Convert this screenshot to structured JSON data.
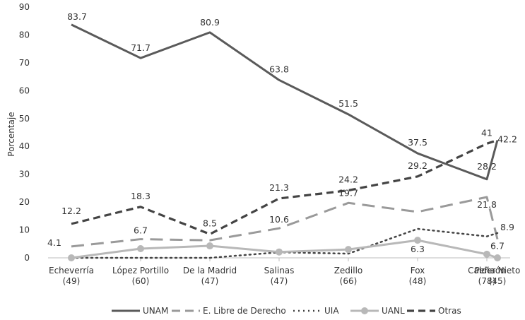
{
  "chart_data": {
    "type": "line",
    "ylabel": "Porcentaje",
    "xlabel": "",
    "ylim": [
      0,
      90
    ],
    "yticks": [
      0,
      10,
      20,
      30,
      40,
      50,
      60,
      70,
      80,
      90
    ],
    "grid": false,
    "legend_position": "bottom",
    "categories": [
      [
        "Echeverría",
        "(49)"
      ],
      [
        "López Portillo",
        "(60)"
      ],
      [
        "De la Madrid",
        "(47)"
      ],
      [
        "Salinas",
        "(47)"
      ],
      [
        "Zedillo",
        "(66)"
      ],
      [
        "Fox",
        "(48)"
      ],
      [
        "Calderón",
        "(78)"
      ],
      [
        "Peña Nieto",
        "(45)"
      ]
    ],
    "series": [
      {
        "name": "UNAM",
        "style": "solid",
        "color": "#5a5a5a",
        "values": [
          83.7,
          71.7,
          80.9,
          63.8,
          51.5,
          37.5,
          28.2,
          42.2
        ],
        "labels": [
          "83.7",
          "71.7",
          "80.9",
          "63.8",
          "51.5",
          "37.5",
          "28.2",
          "42.2"
        ]
      },
      {
        "name": "E. Libre de Derecho",
        "style": "longdash",
        "color": "#9a9a9a",
        "values": [
          4.1,
          6.7,
          6.3,
          10.6,
          19.7,
          16.5,
          21.8,
          6.7
        ],
        "labels": [
          "4.1",
          "6.7",
          "",
          "10.6",
          "19.7",
          "",
          "21.8",
          "6.7"
        ]
      },
      {
        "name": "UIA",
        "style": "dotted",
        "color": "#444444",
        "values": [
          0,
          0,
          0,
          2.0,
          1.5,
          10.4,
          7.7,
          8.9
        ],
        "labels": [
          "",
          "",
          "",
          "",
          "",
          "",
          "",
          "8.9"
        ]
      },
      {
        "name": "UANL",
        "style": "marker",
        "color": "#b8b8b8",
        "values": [
          0,
          3.3,
          4.3,
          2.1,
          3.0,
          6.3,
          1.3,
          0
        ],
        "labels": [
          "",
          "",
          "",
          "",
          "",
          "6.3",
          "",
          ""
        ]
      },
      {
        "name": "Otras",
        "style": "dashed",
        "color": "#444444",
        "values": [
          12.2,
          18.3,
          8.5,
          21.3,
          24.2,
          29.2,
          41,
          42.2
        ],
        "labels": [
          "12.2",
          "18.3",
          "8.5",
          "21.3",
          "24.2",
          "29.2",
          "41",
          ""
        ]
      }
    ]
  }
}
